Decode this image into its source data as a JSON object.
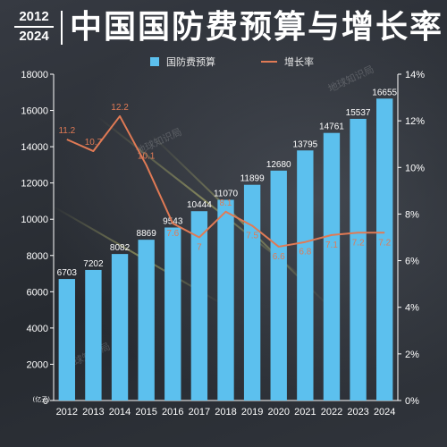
{
  "header": {
    "year_start": "2012",
    "year_end": "2024",
    "title": "中国国防费预算与增长率"
  },
  "legend": {
    "bar_label": "国防费预算",
    "line_label": "增长率"
  },
  "unit_label": "(亿元)",
  "watermarks": [
    "地球知识局",
    "地球知识局",
    "地球知识局"
  ],
  "colors": {
    "bar": "#5cc0ee",
    "line": "#e07a55",
    "bar_value_text": "#ffffff",
    "line_value_text": "#e07a55",
    "axis_text": "#ffffff"
  },
  "chart_data": {
    "type": "bar",
    "categories": [
      "2012",
      "2013",
      "2014",
      "2015",
      "2016",
      "2017",
      "2018",
      "2019",
      "2020",
      "2021",
      "2022",
      "2023",
      "2024"
    ],
    "series": [
      {
        "name": "国防费预算",
        "type": "bar",
        "axis": "left",
        "values": [
          6703,
          7202,
          8082,
          8869,
          9543,
          10444,
          11070,
          11899,
          12680,
          13795,
          14761,
          15537,
          16655
        ]
      },
      {
        "name": "增长率",
        "type": "line",
        "axis": "right",
        "values": [
          11.2,
          10.7,
          12.2,
          10.1,
          7.6,
          7,
          8.1,
          7.5,
          6.6,
          6.8,
          7.1,
          7.2,
          7.2
        ]
      }
    ],
    "y_left": {
      "min": 0,
      "max": 18000,
      "ticks": [
        0,
        2000,
        4000,
        6000,
        8000,
        10000,
        12000,
        14000,
        16000,
        18000
      ]
    },
    "y_right": {
      "min": 0,
      "max": 14,
      "ticks": [
        "0%",
        "2%",
        "4%",
        "6%",
        "8%",
        "10%",
        "12%",
        "14%"
      ]
    },
    "grid": false,
    "legend_position": "top-center"
  }
}
